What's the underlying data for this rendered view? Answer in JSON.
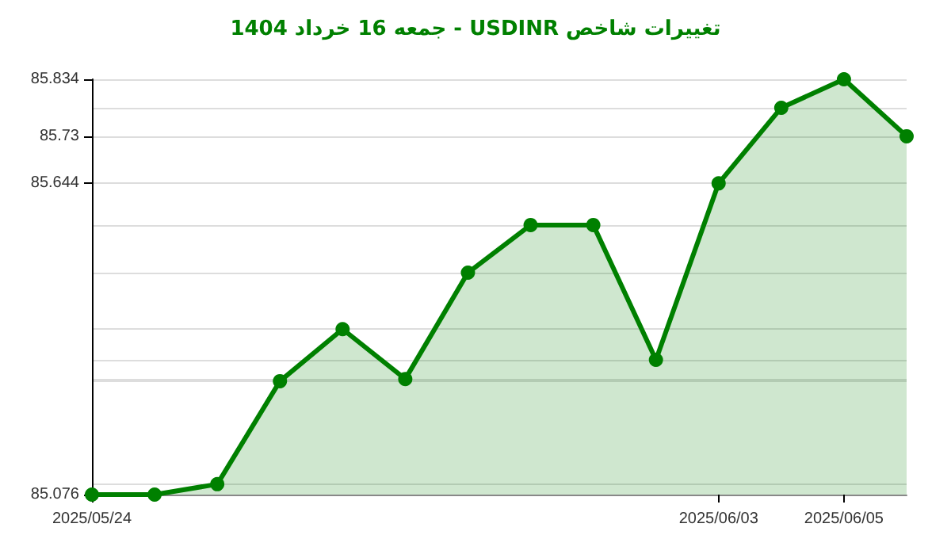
{
  "chart_data": {
    "type": "area",
    "title": "تغییرات شاخص USDINR - جمعه  16 خرداد 1404",
    "x": [
      "2025-05-24",
      "2025-05-25",
      "2025-05-26",
      "2025-05-27",
      "2025-05-28",
      "2025-05-29",
      "2025-05-30",
      "2025-05-31",
      "2025-06-01",
      "2025-06-02",
      "2025-06-03",
      "2025-06-04",
      "2025-06-05",
      "2025-06-06"
    ],
    "series": [
      {
        "color": "#008000",
        "values": [
          85.076,
          85.076,
          85.095,
          85.283,
          85.378,
          85.287,
          85.481,
          85.568,
          85.568,
          85.322,
          85.644,
          85.782,
          85.834,
          85.73
        ]
      }
    ],
    "xlim": [
      "2025-05-24",
      "2025-06-06"
    ],
    "xticks": [
      {
        "value": "2025-05-24",
        "label": "2025/05/24"
      },
      {
        "value": "2025-06-03",
        "label": "2025/06/03"
      },
      {
        "value": "2025-06-05",
        "label": "2025/06/05"
      }
    ],
    "ylim": [
      85.076,
      85.834
    ],
    "yticks": [
      85.076,
      {
        "value": 85.095,
        "label": null
      },
      {
        "value": 85.283,
        "label": null
      },
      {
        "value": 85.287,
        "label": null
      },
      {
        "value": 85.322,
        "label": null
      },
      {
        "value": 85.378,
        "label": null
      },
      {
        "value": 85.481,
        "label": null
      },
      {
        "value": 85.568,
        "label": null
      },
      85.644,
      85.73,
      {
        "value": 85.782,
        "label": null
      },
      85.834
    ],
    "grid": "y",
    "marker": "circle",
    "line_style": "solid"
  }
}
